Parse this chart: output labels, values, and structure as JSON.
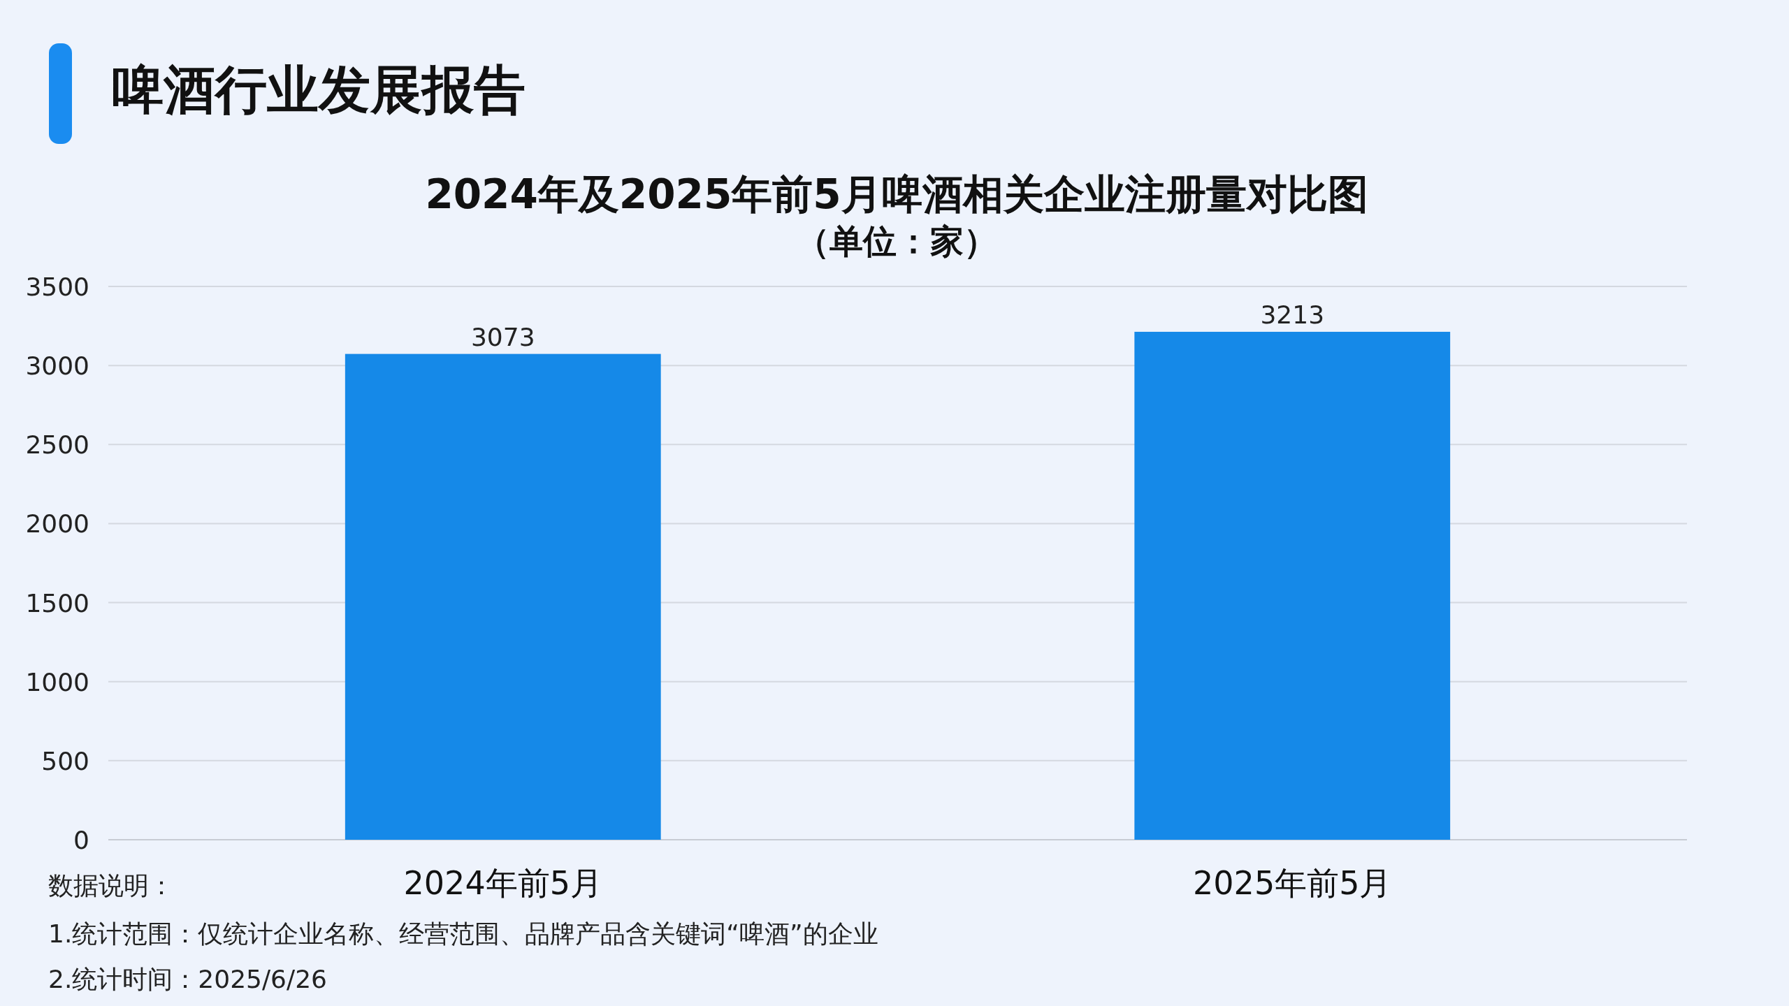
{
  "chart_data": {
    "type": "bar",
    "title": "2024年及2025年前5月啤酒相关企业注册量对比图",
    "subtitle": "（单位：家）",
    "categories": [
      "2024年前5月",
      "2025年前5月"
    ],
    "values": [
      3073,
      3213
    ],
    "color": "#1589e8",
    "ylim": [
      0,
      3500
    ],
    "yticks": [
      0,
      500,
      1000,
      1500,
      2000,
      2500,
      3000,
      3500
    ],
    "grid": "y",
    "data_labels": true,
    "annotations": [
      "啤酒行业发展报告",
      "数据说明：",
      "1.统计范围：仅统计企业名称、经营范围、品牌产品含关键词“啤酒”的企业",
      "2.统计时间：2025/6/26"
    ]
  }
}
